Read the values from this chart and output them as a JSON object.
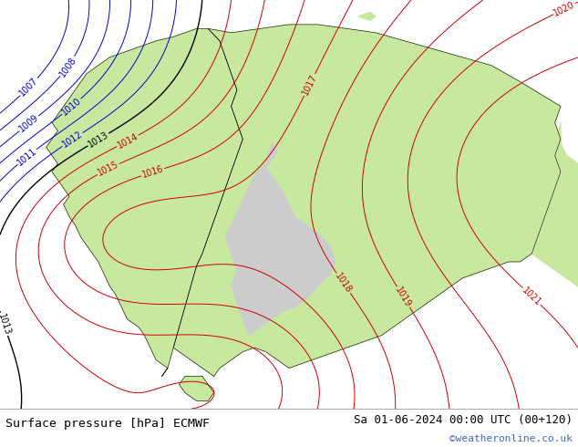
{
  "title_left": "Surface pressure [hPa] ECMWF",
  "title_right": "Sa 01-06-2024 00:00 UTC (00+120)",
  "watermark": "©weatheronline.co.uk",
  "bg_color": "#cccccc",
  "land_color": "#c8e8a0",
  "mountain_color": "#b8b8b8",
  "sea_color": "#cccccc",
  "fig_width": 6.34,
  "fig_height": 4.9,
  "dpi": 100,
  "bottom_bar_color": "#f0f0f0",
  "title_fontsize": 9.5,
  "watermark_color": "#4466cc",
  "contour_label_fontsize": 7
}
